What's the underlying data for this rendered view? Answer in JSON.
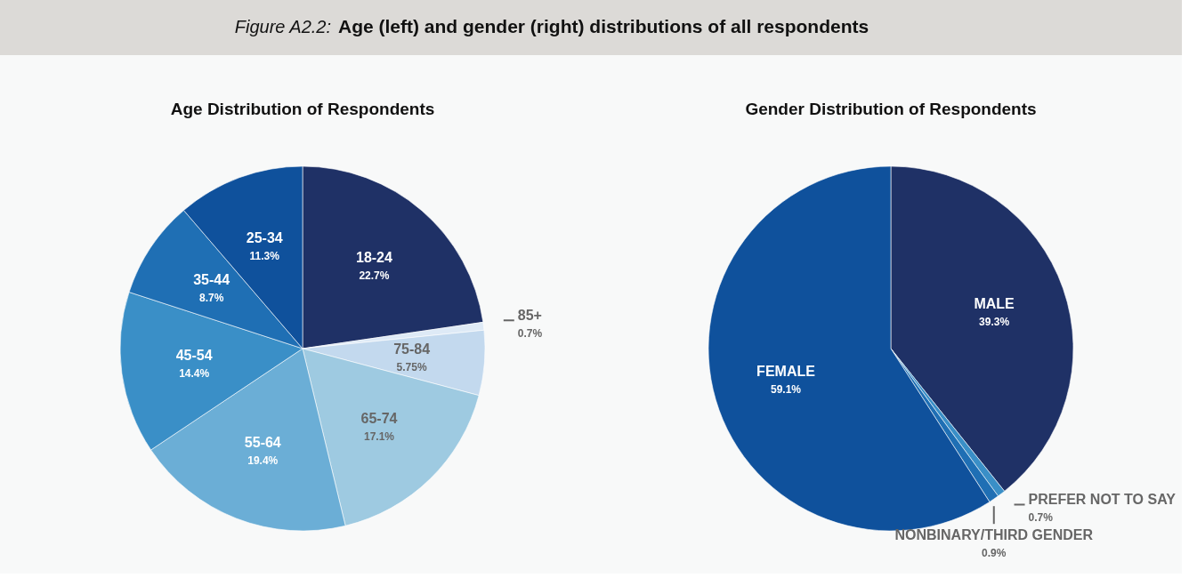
{
  "chart_data": [
    {
      "type": "pie",
      "title": "Age Distribution of Respondents",
      "annotations": [
        "Figure A2.2:",
        "Age (left) and gender (right) distributions of all respondents"
      ],
      "categories": [
        "18-24",
        "85+",
        "75-84",
        "65-74",
        "55-64",
        "45-54",
        "35-44",
        "25-34"
      ],
      "values": [
        22.7,
        0.7,
        5.75,
        17.1,
        19.4,
        14.4,
        8.7,
        11.3
      ],
      "value_labels": [
        "22.7%",
        "0.7%",
        "5.75%",
        "17.1%",
        "19.4%",
        "14.4%",
        "8.7%",
        "11.3%"
      ],
      "colors": [
        "#1f3166",
        "#deeaf6",
        "#c3d9ee",
        "#9ecae1",
        "#6baed6",
        "#3a8fc7",
        "#1f6fb4",
        "#0f519c"
      ]
    },
    {
      "type": "pie",
      "title": "Gender Distribution of Respondents",
      "categories": [
        "MALE",
        "PREFER NOT TO SAY",
        "NONBINARY/THIRD GENDER",
        "FEMALE"
      ],
      "values": [
        39.3,
        0.7,
        0.9,
        59.1
      ],
      "value_labels": [
        "39.3%",
        "0.7%",
        "0.9%",
        "59.1%"
      ],
      "colors": [
        "#1f3166",
        "#3a8fc7",
        "#1f6fb4",
        "#0f519c"
      ]
    }
  ]
}
